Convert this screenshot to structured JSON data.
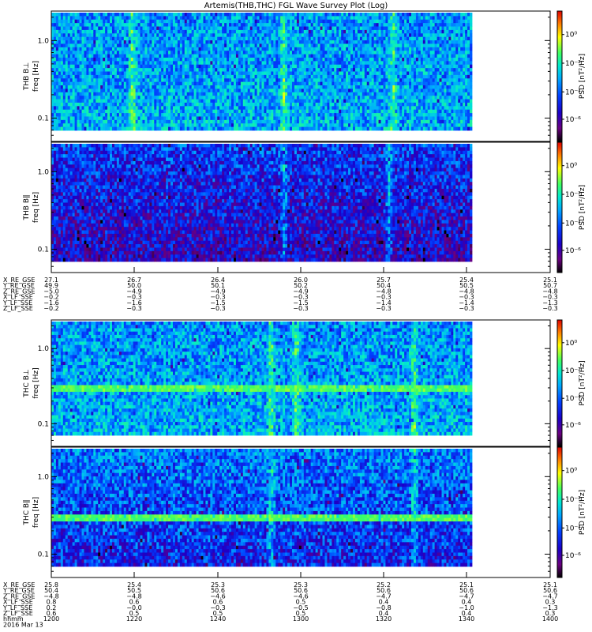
{
  "title": "Artemis(THB,THC) FGL Wave Survey Plot (Log)",
  "chart_data": [
    {
      "type": "heatmap",
      "ylabel": [
        "THB B⊥",
        "freq [Hz]"
      ],
      "yscale": "log",
      "ylim": [
        0.05,
        2.4
      ],
      "yticks": [
        "1.0",
        "0.1"
      ],
      "colorbar": {
        "label": "PSD [nT²/Hz]",
        "scale": "log",
        "ticks": [
          "10⁰",
          "10⁻²",
          "10⁻⁴",
          "10⁻⁶"
        ]
      }
    },
    {
      "type": "heatmap",
      "ylabel": [
        "THB B∥",
        "freq [Hz]"
      ],
      "yscale": "log",
      "ylim": [
        0.05,
        2.4
      ],
      "yticks": [
        "1.0",
        "0.1"
      ],
      "colorbar": {
        "label": "PSD [nT²/Hz]",
        "scale": "log",
        "ticks": [
          "10⁰",
          "10⁻²",
          "10⁻⁴",
          "10⁻⁶"
        ]
      }
    },
    {
      "type": "heatmap",
      "ylabel": [
        "THC B⊥",
        "freq [Hz]"
      ],
      "yscale": "log",
      "ylim": [
        0.05,
        2.4
      ],
      "yticks": [
        "1.0",
        "0.1"
      ],
      "colorbar": {
        "label": "PSD [nT²/Hz]",
        "scale": "log",
        "ticks": [
          "10⁰",
          "10⁻²",
          "10⁻⁴",
          "10⁻⁶"
        ]
      }
    },
    {
      "type": "heatmap",
      "ylabel": [
        "THC B∥",
        "freq [Hz]"
      ],
      "yscale": "log",
      "ylim": [
        0.05,
        2.4
      ],
      "yticks": [
        "1.0",
        "0.1"
      ],
      "colorbar": {
        "label": "PSD [nT²/Hz]",
        "scale": "log",
        "ticks": [
          "10⁰",
          "10⁻²",
          "10⁻⁴",
          "10⁻⁶"
        ]
      }
    }
  ],
  "ephemeris": [
    {
      "labels": [
        "X_RE_GSE",
        "Y_RE_GSE",
        "Z_RE_GSE",
        "X_LF_SSE",
        "Y_LF_SSE",
        "Z_LF_SSE"
      ],
      "columns": [
        [
          "27.1",
          "49.9",
          "−5.0",
          "−0.2",
          "−1.6",
          "−0.2"
        ],
        [
          "26.7",
          "50.0",
          "−4.9",
          "−0.3",
          "−1.6",
          "−0.3"
        ],
        [
          "26.4",
          "50.1",
          "−4.9",
          "−0.3",
          "−1.5",
          "−0.3"
        ],
        [
          "26.0",
          "50.2",
          "−4.9",
          "−0.3",
          "−1.5",
          "−0.3"
        ],
        [
          "25.7",
          "50.4",
          "−4.8",
          "−0.3",
          "−1.4",
          "−0.3"
        ],
        [
          "25.4",
          "50.5",
          "−4.8",
          "−0.3",
          "−1.4",
          "−0.3"
        ],
        [
          "25.1",
          "50.7",
          "−4.8",
          "−0.3",
          "−1.3",
          "−0.3"
        ]
      ]
    },
    {
      "labels": [
        "X_RE_GSE",
        "Y_RE_GSE",
        "Z_RE_GSE",
        "X_LF_SSE",
        "Y_LF_SSE",
        "Z_LF_SSE",
        "hhmm",
        "2016 Mar 13"
      ],
      "columns": [
        [
          "25.8",
          "50.4",
          "−4.8",
          "0.8",
          "0.2",
          "0.6",
          "1200",
          ""
        ],
        [
          "25.4",
          "50.5",
          "−4.8",
          "0.6",
          "−0.0",
          "0.5",
          "1220",
          ""
        ],
        [
          "25.3",
          "50.6",
          "−4.6",
          "0.6",
          "−0.3",
          "0.5",
          "1240",
          ""
        ],
        [
          "25.3",
          "50.6",
          "−4.6",
          "0.5",
          "−0.5",
          "0.5",
          "1300",
          ""
        ],
        [
          "25.2",
          "50.6",
          "−4.7",
          "0.4",
          "−0.8",
          "0.4",
          "1320",
          ""
        ],
        [
          "25.1",
          "50.6",
          "−4.7",
          "0.4",
          "−1.0",
          "0.4",
          "1340",
          ""
        ],
        [
          "25.1",
          "50.6",
          "−4.7",
          "0.3",
          "−1.3",
          "0.3",
          "1400",
          ""
        ]
      ]
    }
  ],
  "colors": {
    "axis": "#000000",
    "background": "#ffffff",
    "colormap": [
      "#000000",
      "#6a0080",
      "#1b00c8",
      "#0040ff",
      "#00a8ff",
      "#00e8d0",
      "#40ff60",
      "#ffff00",
      "#ff8000",
      "#e00000"
    ]
  }
}
